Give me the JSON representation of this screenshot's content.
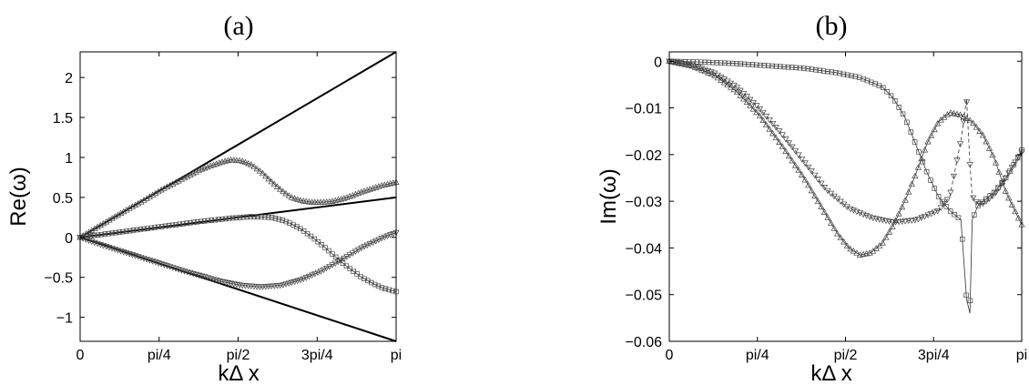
{
  "chart_data": [
    {
      "id": "a",
      "type": "line",
      "title": "(a)",
      "xlabel": "kΔ x",
      "ylabel": "Re(ω)",
      "xlim": [
        0,
        3.14159
      ],
      "ylim": [
        -1.3,
        2.32
      ],
      "xticks": [
        {
          "value": 0,
          "label": "0"
        },
        {
          "value": 0.7854,
          "label": "pi/4"
        },
        {
          "value": 1.5708,
          "label": "pi/2"
        },
        {
          "value": 2.3562,
          "label": "3pi/4"
        },
        {
          "value": 3.14159,
          "label": "pi"
        }
      ],
      "yticks": [
        {
          "value": -1,
          "label": "−1"
        },
        {
          "value": -0.5,
          "label": "−0.5"
        },
        {
          "value": 0,
          "label": "0"
        },
        {
          "value": 0.5,
          "label": "0.5"
        },
        {
          "value": 1,
          "label": "1"
        },
        {
          "value": 1.5,
          "label": "1.5"
        },
        {
          "value": 2,
          "label": "2"
        }
      ],
      "series": [
        {
          "style": "solid",
          "x": [
            0,
            3.14159
          ],
          "y": [
            0,
            2.32
          ]
        },
        {
          "style": "solid",
          "x": [
            0,
            3.14159
          ],
          "y": [
            0,
            0.5
          ]
        },
        {
          "style": "solid",
          "x": [
            0,
            3.14159
          ],
          "y": [
            0,
            -1.3
          ]
        },
        {
          "style": "marker",
          "marker": "triangle-up",
          "x": [
            0,
            0.2,
            0.4,
            0.6,
            0.8,
            1.0,
            1.2,
            1.4,
            1.5,
            1.6,
            1.7,
            1.8,
            1.9,
            2.0,
            2.1,
            2.2,
            2.3,
            2.4,
            2.5,
            2.6,
            2.7,
            2.8,
            2.9,
            3.0,
            3.14159
          ],
          "y": [
            0,
            0.15,
            0.3,
            0.44,
            0.59,
            0.72,
            0.85,
            0.94,
            0.97,
            0.96,
            0.91,
            0.82,
            0.7,
            0.59,
            0.5,
            0.46,
            0.44,
            0.44,
            0.45,
            0.48,
            0.52,
            0.57,
            0.61,
            0.65,
            0.69
          ]
        },
        {
          "style": "marker",
          "marker": "square",
          "x": [
            0,
            0.3,
            0.6,
            0.9,
            1.2,
            1.5,
            1.7,
            1.9,
            2.0,
            2.1,
            2.2,
            2.3,
            2.4,
            2.5,
            2.6,
            2.7,
            2.8,
            2.9,
            3.0,
            3.14159
          ],
          "y": [
            0,
            0.05,
            0.1,
            0.15,
            0.2,
            0.24,
            0.26,
            0.25,
            0.22,
            0.17,
            0.1,
            0.01,
            -0.09,
            -0.2,
            -0.31,
            -0.41,
            -0.5,
            -0.57,
            -0.63,
            -0.68
          ]
        },
        {
          "style": "marker",
          "marker": "triangle-down",
          "x": [
            0,
            0.2,
            0.4,
            0.6,
            0.8,
            1.0,
            1.2,
            1.4,
            1.6,
            1.8,
            2.0,
            2.2,
            2.4,
            2.6,
            2.8,
            3.0,
            3.14159
          ],
          "y": [
            0,
            -0.09,
            -0.17,
            -0.25,
            -0.33,
            -0.41,
            -0.48,
            -0.55,
            -0.6,
            -0.62,
            -0.6,
            -0.53,
            -0.42,
            -0.28,
            -0.13,
            -0.01,
            0.06
          ]
        }
      ]
    },
    {
      "id": "b",
      "type": "line",
      "title": "(b)",
      "xlabel": "kΔ x",
      "ylabel": "Im(ω)",
      "xlim": [
        0,
        3.14159
      ],
      "ylim": [
        -0.06,
        0.002
      ],
      "xticks": [
        {
          "value": 0,
          "label": "0"
        },
        {
          "value": 0.7854,
          "label": "pi/4"
        },
        {
          "value": 1.5708,
          "label": "pi/2"
        },
        {
          "value": 2.3562,
          "label": "3pi/4"
        },
        {
          "value": 3.14159,
          "label": "pi"
        }
      ],
      "yticks": [
        {
          "value": 0,
          "label": "0"
        },
        {
          "value": -0.01,
          "label": "−0.01"
        },
        {
          "value": -0.02,
          "label": "−0.02"
        },
        {
          "value": -0.03,
          "label": "−0.03"
        },
        {
          "value": -0.04,
          "label": "−0.04"
        },
        {
          "value": -0.05,
          "label": "−0.05"
        },
        {
          "value": -0.06,
          "label": "−0.06"
        }
      ],
      "series": [
        {
          "style": "marker",
          "marker": "square",
          "x": [
            0,
            0.3,
            0.6,
            0.9,
            1.2,
            1.5,
            1.7,
            1.9,
            2.0,
            2.1,
            2.2,
            2.3,
            2.4,
            2.5,
            2.6,
            2.65,
            2.68,
            2.7,
            2.75,
            2.8,
            2.9,
            3.0,
            3.1,
            3.14159
          ],
          "y": [
            0,
            -0.0002,
            -0.0005,
            -0.001,
            -0.0015,
            -0.0025,
            -0.0035,
            -0.0055,
            -0.008,
            -0.012,
            -0.018,
            -0.024,
            -0.029,
            -0.032,
            -0.034,
            -0.051,
            -0.054,
            -0.034,
            -0.031,
            -0.03,
            -0.028,
            -0.025,
            -0.021,
            -0.019
          ]
        },
        {
          "style": "marker",
          "marker": "triangle-up",
          "x": [
            0,
            0.2,
            0.4,
            0.6,
            0.8,
            1.0,
            1.2,
            1.4,
            1.5,
            1.6,
            1.7,
            1.8,
            1.9,
            2.0,
            2.1,
            2.2,
            2.3,
            2.4,
            2.5,
            2.6,
            2.7,
            2.8,
            2.9,
            3.0,
            3.1,
            3.14159
          ],
          "y": [
            0,
            -0.001,
            -0.003,
            -0.0065,
            -0.0115,
            -0.018,
            -0.025,
            -0.033,
            -0.037,
            -0.04,
            -0.0415,
            -0.041,
            -0.039,
            -0.035,
            -0.03,
            -0.024,
            -0.0175,
            -0.013,
            -0.011,
            -0.0115,
            -0.013,
            -0.016,
            -0.021,
            -0.028,
            -0.033,
            -0.035
          ]
        },
        {
          "style": "marker",
          "marker": "triangle-down",
          "dashed": true,
          "x": [
            0,
            0.2,
            0.4,
            0.6,
            0.8,
            1.0,
            1.2,
            1.4,
            1.6,
            1.8,
            2.0,
            2.2,
            2.4,
            2.5,
            2.6,
            2.65,
            2.68,
            2.7,
            2.75,
            2.8,
            2.9,
            3.0,
            3.1,
            3.14159
          ],
          "y": [
            0,
            -0.0008,
            -0.0025,
            -0.0055,
            -0.01,
            -0.0155,
            -0.0215,
            -0.0275,
            -0.0315,
            -0.0335,
            -0.0345,
            -0.034,
            -0.032,
            -0.029,
            -0.017,
            -0.008,
            -0.022,
            -0.029,
            -0.0305,
            -0.0305,
            -0.0285,
            -0.025,
            -0.021,
            -0.0195
          ]
        }
      ]
    }
  ]
}
